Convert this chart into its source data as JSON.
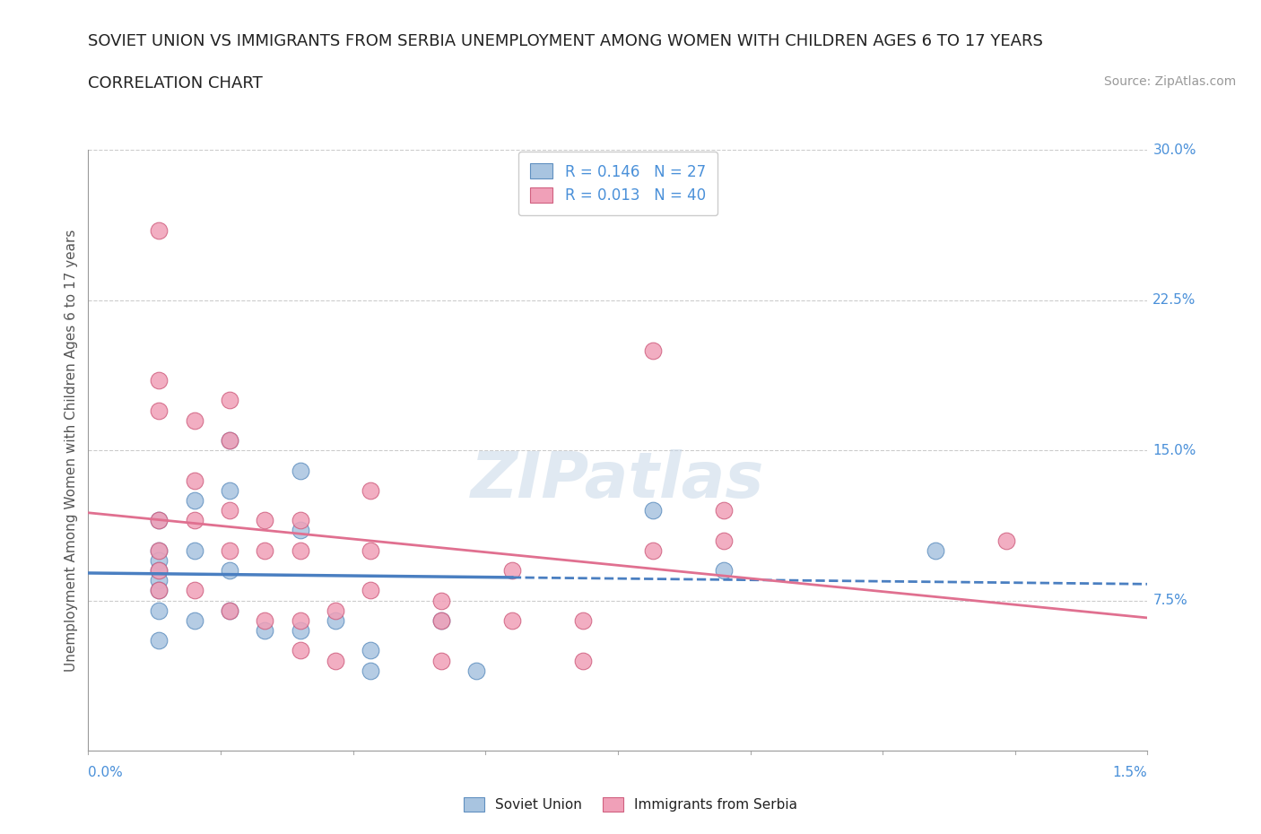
{
  "title_line1": "SOVIET UNION VS IMMIGRANTS FROM SERBIA UNEMPLOYMENT AMONG WOMEN WITH CHILDREN AGES 6 TO 17 YEARS",
  "title_line2": "CORRELATION CHART",
  "source_text": "Source: ZipAtlas.com",
  "xlabel": "",
  "ylabel": "Unemployment Among Women with Children Ages 6 to 17 years",
  "xlim": [
    0.0,
    0.015
  ],
  "ylim": [
    0.0,
    0.3
  ],
  "xtick_labels": [
    "0.0%",
    "1.5%"
  ],
  "ytick_positions": [
    0.075,
    0.15,
    0.225,
    0.3
  ],
  "ytick_labels": [
    "7.5%",
    "15.0%",
    "22.5%",
    "30.0%"
  ],
  "watermark": "ZIPatlas",
  "legend_entries": [
    {
      "label": "R = 0.146   N = 27",
      "color": "#a8c4e0"
    },
    {
      "label": "R = 0.013   N = 40",
      "color": "#f0a0b8"
    }
  ],
  "soviet_union_color": "#a8c4e0",
  "soviet_union_edge": "#6090c0",
  "serbia_color": "#f0a0b8",
  "serbia_edge": "#d06080",
  "soviet_union_R": 0.146,
  "soviet_union_N": 27,
  "serbia_R": 0.013,
  "serbia_N": 40,
  "soviet_x": [
    0.001,
    0.001,
    0.001,
    0.001,
    0.001,
    0.001,
    0.001,
    0.001,
    0.0015,
    0.0015,
    0.0015,
    0.002,
    0.002,
    0.002,
    0.002,
    0.0025,
    0.003,
    0.003,
    0.003,
    0.0035,
    0.004,
    0.004,
    0.005,
    0.0055,
    0.008,
    0.009,
    0.012
  ],
  "soviet_y": [
    0.115,
    0.1,
    0.095,
    0.09,
    0.085,
    0.08,
    0.07,
    0.055,
    0.125,
    0.1,
    0.065,
    0.155,
    0.13,
    0.09,
    0.07,
    0.06,
    0.14,
    0.11,
    0.06,
    0.065,
    0.05,
    0.04,
    0.065,
    0.04,
    0.12,
    0.09,
    0.1
  ],
  "serbia_x": [
    0.001,
    0.001,
    0.001,
    0.001,
    0.001,
    0.001,
    0.001,
    0.0015,
    0.0015,
    0.0015,
    0.0015,
    0.002,
    0.002,
    0.002,
    0.002,
    0.002,
    0.0025,
    0.0025,
    0.0025,
    0.003,
    0.003,
    0.003,
    0.003,
    0.0035,
    0.0035,
    0.004,
    0.004,
    0.004,
    0.005,
    0.005,
    0.005,
    0.006,
    0.006,
    0.007,
    0.007,
    0.008,
    0.008,
    0.009,
    0.009,
    0.013
  ],
  "serbia_y": [
    0.26,
    0.185,
    0.17,
    0.115,
    0.1,
    0.09,
    0.08,
    0.165,
    0.135,
    0.115,
    0.08,
    0.175,
    0.155,
    0.12,
    0.1,
    0.07,
    0.115,
    0.1,
    0.065,
    0.115,
    0.1,
    0.065,
    0.05,
    0.07,
    0.045,
    0.13,
    0.1,
    0.08,
    0.075,
    0.065,
    0.045,
    0.09,
    0.065,
    0.065,
    0.045,
    0.2,
    0.1,
    0.12,
    0.105,
    0.105
  ],
  "title_color": "#222222",
  "axis_label_color": "#555555",
  "tick_color_right": "#4a90d9",
  "grid_color": "#cccccc",
  "background_color": "#ffffff",
  "plot_bg_color": "#ffffff",
  "blue_line_color": "#4a7fc1",
  "pink_line_color": "#e07090"
}
